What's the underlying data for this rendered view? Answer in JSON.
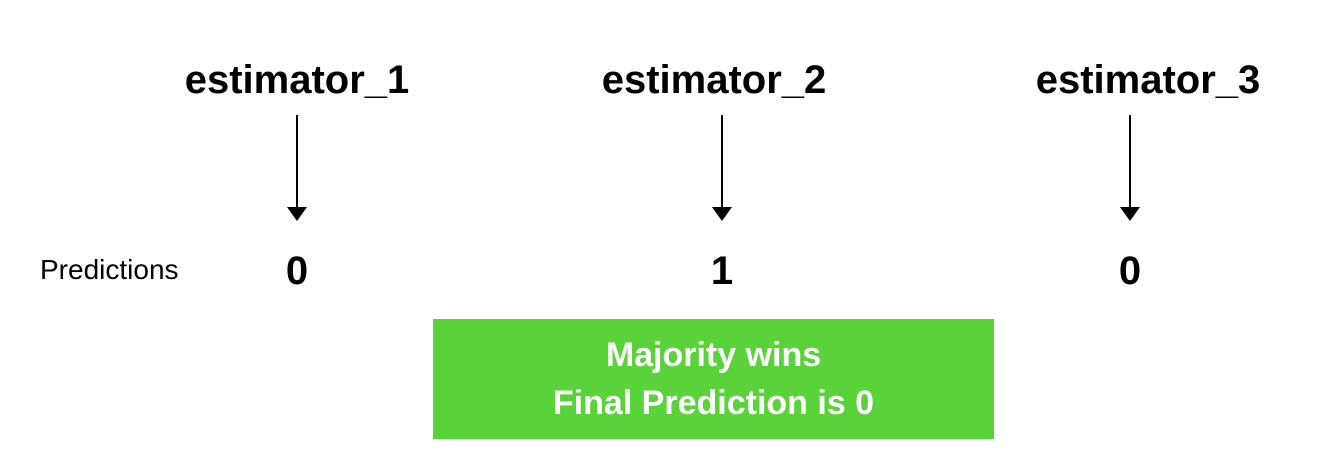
{
  "estimators": [
    {
      "name": "estimator_1",
      "prediction": "0"
    },
    {
      "name": "estimator_2",
      "prediction": "1"
    },
    {
      "name": "estimator_3",
      "prediction": "0"
    }
  ],
  "row_label": "Predictions",
  "result": {
    "line1": "Majority wins",
    "line2": "Final Prediction is 0",
    "color": "#5ad33a",
    "text_color": "#ffffff"
  }
}
